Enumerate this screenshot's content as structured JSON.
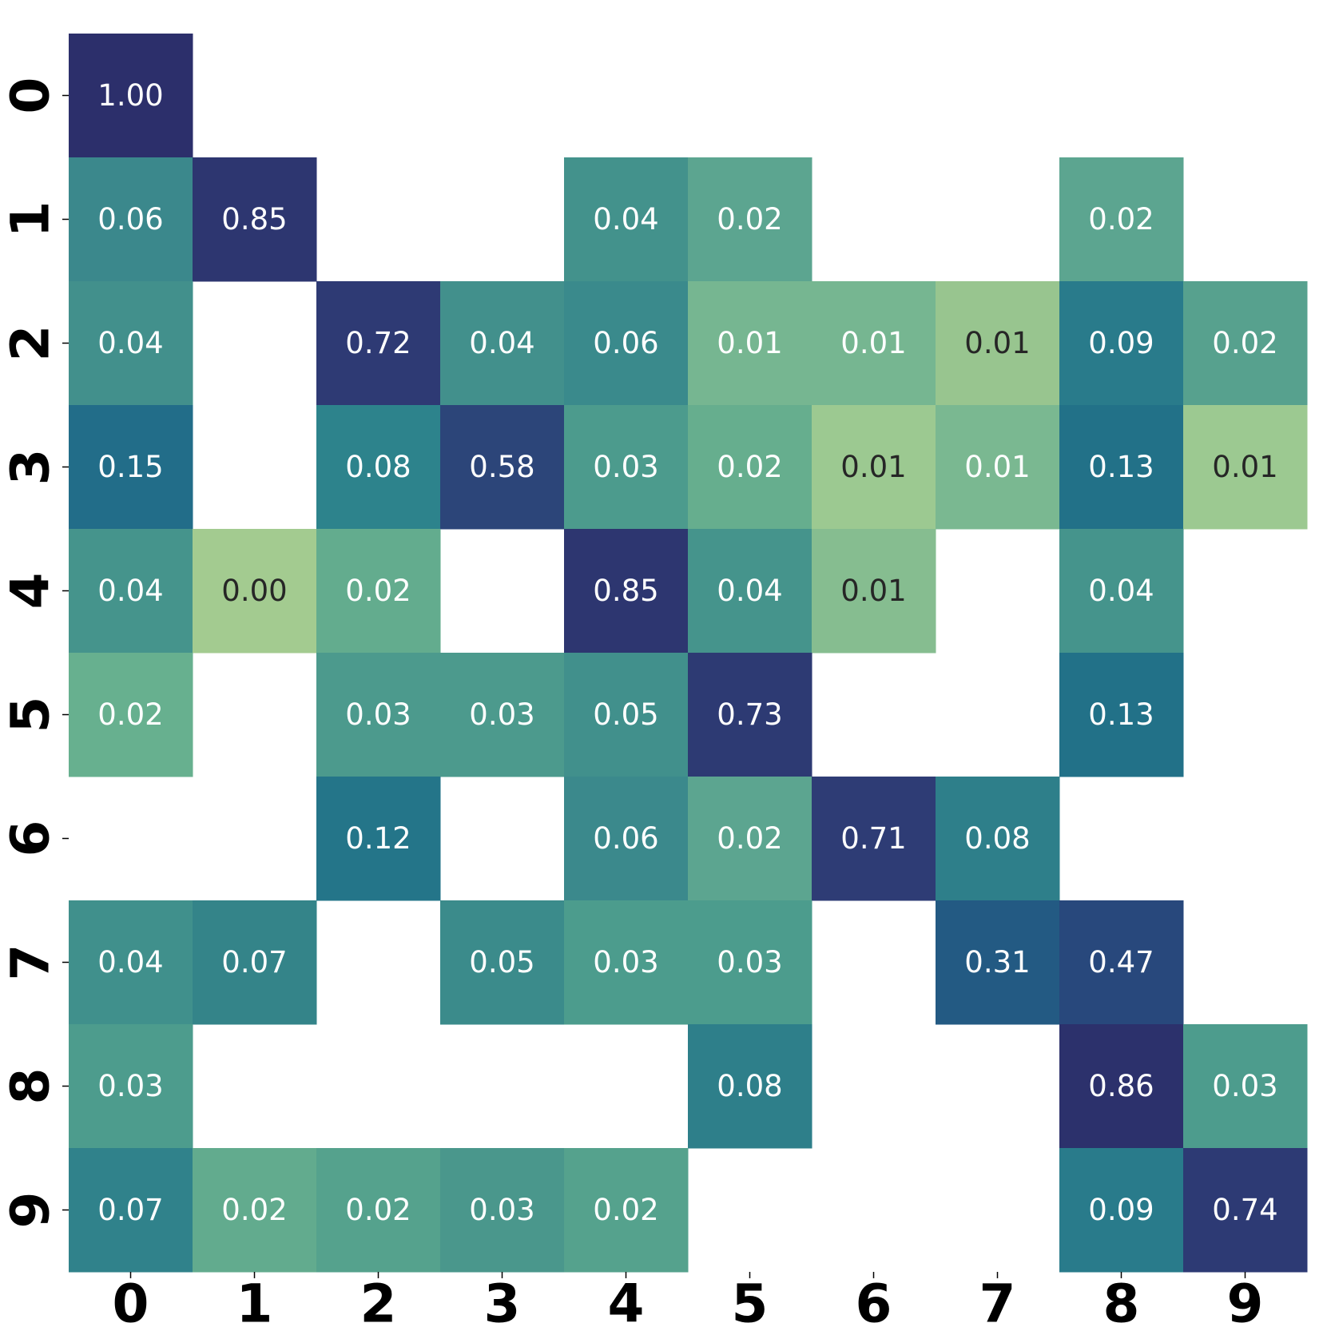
{
  "chart_data": {
    "type": "heatmap",
    "x_categories": [
      "0",
      "1",
      "2",
      "3",
      "4",
      "5",
      "6",
      "7",
      "8",
      "9"
    ],
    "y_categories": [
      "0",
      "1",
      "2",
      "3",
      "4",
      "5",
      "6",
      "7",
      "8",
      "9"
    ],
    "values": [
      [
        1.0,
        null,
        null,
        null,
        null,
        null,
        null,
        null,
        null,
        null
      ],
      [
        0.06,
        0.85,
        null,
        null,
        0.04,
        0.02,
        null,
        null,
        0.02,
        null
      ],
      [
        0.04,
        null,
        0.72,
        0.04,
        0.06,
        0.01,
        0.01,
        0.01,
        0.09,
        0.02
      ],
      [
        0.15,
        null,
        0.08,
        0.58,
        0.03,
        0.02,
        0.01,
        0.01,
        0.13,
        0.01
      ],
      [
        0.04,
        0.0,
        0.02,
        null,
        0.85,
        0.04,
        0.01,
        null,
        0.04,
        null
      ],
      [
        0.02,
        null,
        0.03,
        0.03,
        0.05,
        0.73,
        null,
        null,
        0.13,
        null
      ],
      [
        null,
        null,
        0.12,
        null,
        0.06,
        0.02,
        0.71,
        0.08,
        null,
        null
      ],
      [
        0.04,
        0.07,
        null,
        0.05,
        0.03,
        0.03,
        null,
        0.31,
        0.47,
        null
      ],
      [
        0.03,
        null,
        null,
        null,
        null,
        0.08,
        null,
        null,
        0.86,
        0.03
      ],
      [
        0.07,
        0.02,
        0.02,
        0.03,
        0.02,
        null,
        null,
        null,
        0.09,
        0.74
      ]
    ],
    "value_labels": [
      [
        "1.00",
        null,
        null,
        null,
        null,
        null,
        null,
        null,
        null,
        null
      ],
      [
        "0.06",
        "0.85",
        null,
        null,
        "0.04",
        "0.02",
        null,
        null,
        "0.02",
        null
      ],
      [
        "0.04",
        null,
        "0.72",
        "0.04",
        "0.06",
        "0.01",
        "0.01",
        "0.01",
        "0.09",
        "0.02"
      ],
      [
        "0.15",
        null,
        "0.08",
        "0.58",
        "0.03",
        "0.02",
        "0.01",
        "0.01",
        "0.13",
        "0.01"
      ],
      [
        "0.04",
        "0.00",
        "0.02",
        null,
        "0.85",
        "0.04",
        "0.01",
        null,
        "0.04",
        null
      ],
      [
        "0.02",
        null,
        "0.03",
        "0.03",
        "0.05",
        "0.73",
        null,
        null,
        "0.13",
        null
      ],
      [
        null,
        null,
        "0.12",
        null,
        "0.06",
        "0.02",
        "0.71",
        "0.08",
        null,
        null
      ],
      [
        "0.04",
        "0.07",
        null,
        "0.05",
        "0.03",
        "0.03",
        null,
        "0.31",
        "0.47",
        null
      ],
      [
        "0.03",
        null,
        null,
        null,
        null,
        "0.08",
        null,
        null,
        "0.86",
        "0.03"
      ],
      [
        "0.07",
        "0.02",
        "0.02",
        "0.03",
        "0.02",
        null,
        null,
        null,
        "0.09",
        "0.74"
      ]
    ],
    "colors": [
      [
        "#2c2f6b",
        null,
        null,
        null,
        null,
        null,
        null,
        null,
        null,
        null
      ],
      [
        "#3b888c",
        "#2d3670",
        null,
        null,
        "#43928c",
        "#5ca590",
        null,
        null,
        "#5ca590",
        null
      ],
      [
        "#42908c",
        null,
        "#2e3a74",
        "#42908c",
        "#3a8a8c",
        "#76b691",
        "#76b691",
        "#98c58f",
        "#297b8b",
        "#57a18e"
      ],
      [
        "#226d89",
        null,
        "#2d838c",
        "#2c4579",
        "#4c9b8d",
        "#66ae8e",
        "#9cc991",
        "#7ab891",
        "#227188",
        "#9cc991"
      ],
      [
        "#45948c",
        "#a3cb90",
        "#63ac8e",
        null,
        "#2d3670",
        "#45948c",
        "#86bd90",
        null,
        "#45948c",
        null
      ],
      [
        "#67b08f",
        null,
        "#4c9a8d",
        "#4c9a8d",
        "#41908c",
        "#2d3a73",
        null,
        null,
        "#227188",
        null
      ],
      [
        null,
        null,
        "#247589",
        null,
        "#3b898c",
        "#5ca590",
        "#2e3c75",
        "#2e7f8a",
        null,
        null
      ],
      [
        "#40908c",
        "#348489",
        null,
        "#3b8b8b",
        "#4c9c8d",
        "#4c9c8d",
        null,
        "#235a83",
        "#28487c",
        null
      ],
      [
        "#4d9c8d",
        null,
        null,
        null,
        null,
        "#2e7f8a",
        null,
        null,
        "#2c316c",
        "#4d9c8d"
      ],
      [
        "#30828b",
        "#62ab8e",
        "#55a28d",
        "#4a978c",
        "#55a28d",
        null,
        null,
        null,
        "#297b8b",
        "#2d3a74"
      ]
    ]
  }
}
